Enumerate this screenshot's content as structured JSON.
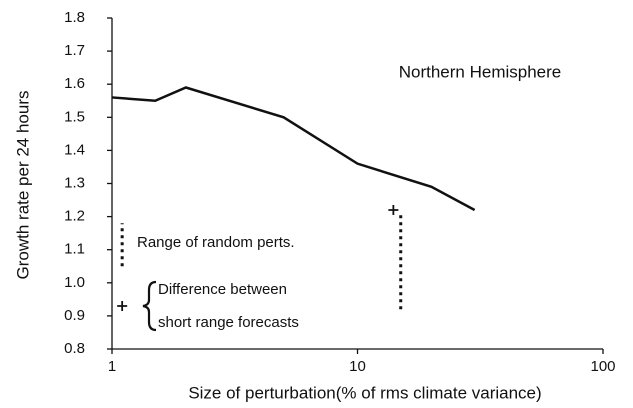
{
  "chart_data": {
    "type": "line",
    "x_label": "Size of perturbation(% of rms climate variance)",
    "y_label": "Growth rate per 24 hours",
    "x": [
      1,
      1.5,
      2,
      5,
      10,
      20,
      30
    ],
    "series": [
      {
        "name": "Northern Hemisphere",
        "color": "#111111",
        "values": [
          1.56,
          1.55,
          1.59,
          1.5,
          1.36,
          1.29,
          1.22
        ]
      }
    ],
    "ranges": [
      {
        "x": 1.1,
        "low": 1.05,
        "high": 1.18
      },
      {
        "x": 15,
        "low": 0.92,
        "high": 1.21
      }
    ],
    "points": [
      {
        "x": 1.1,
        "y": 0.93
      },
      {
        "x": 14,
        "y": 1.22
      }
    ],
    "annotations": [
      "Range of random perts.",
      "Difference between",
      "short range forecasts"
    ],
    "xscale": "log",
    "xlim": [
      1,
      100
    ],
    "xticks": [
      1,
      10,
      100
    ],
    "ylim": [
      0.8,
      1.8
    ],
    "yticks": [
      0.8,
      0.9,
      {
        "value": 1,
        "label": "1.0"
      },
      1.1,
      1.2,
      1.3,
      1.4,
      1.5,
      1.6,
      1.7,
      1.8
    ],
    "grid": false
  }
}
